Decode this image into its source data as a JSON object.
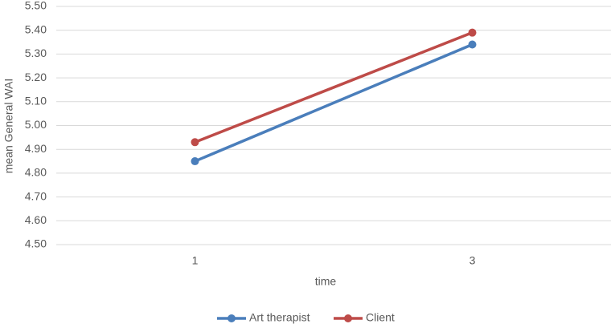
{
  "chart_data": {
    "type": "line",
    "categories": [
      "1",
      "3"
    ],
    "x_label": "time",
    "y_label": "mean General WAI",
    "series": [
      {
        "name": "Art therapist",
        "color": "#4a7ebb",
        "values": [
          4.85,
          5.34
        ]
      },
      {
        "name": "Client",
        "color": "#be4b48",
        "values": [
          4.93,
          5.39
        ]
      }
    ],
    "ylim": [
      4.5,
      5.5
    ],
    "yticks": [
      {
        "value": 4.5,
        "label": "4.50"
      },
      {
        "value": 4.6,
        "label": "4.60"
      },
      {
        "value": 4.7,
        "label": "4.70"
      },
      {
        "value": 4.8,
        "label": "4.80"
      },
      {
        "value": 4.9,
        "label": "4.90"
      },
      {
        "value": 5.0,
        "label": "5.00"
      },
      {
        "value": 5.1,
        "label": "5.10"
      },
      {
        "value": 5.2,
        "label": "5.20"
      },
      {
        "value": 5.3,
        "label": "5.30"
      },
      {
        "value": 5.4,
        "label": "5.40"
      },
      {
        "value": 5.5,
        "label": "5.50"
      }
    ],
    "grid": true,
    "legend": "bottom"
  }
}
